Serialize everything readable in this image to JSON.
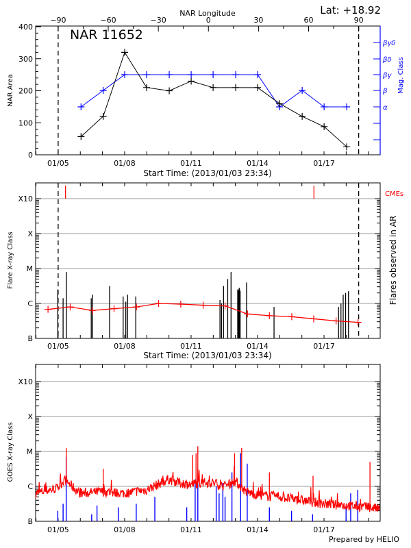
{
  "chart_data": [
    {
      "type": "line",
      "title": "NAR 11652",
      "annotation_lat": "Lat: +18.92",
      "top_axis_label": "NAR Longitude",
      "top_ticks": [
        "-90",
        "-60",
        "-30",
        "0",
        "30",
        "60",
        "90"
      ],
      "top_tick_values": [
        -90,
        -60,
        -30,
        0,
        30,
        60,
        90
      ],
      "xlabel": "Start Time: (2013/01/03 23:34)",
      "x_tick_labels": [
        "01/05",
        "01/08",
        "01/11",
        "01/14",
        "01/17"
      ],
      "x_tick_days": [
        1.0167,
        4.0167,
        7.0167,
        10.0167,
        13.0167
      ],
      "x_range_days": [
        0,
        15.55
      ],
      "ylabel": "NAR Area",
      "ylim": [
        0,
        400
      ],
      "y_ticks": [
        "0",
        "100",
        "200",
        "300",
        "400"
      ],
      "limb_lines_days": [
        1.0167,
        14.58
      ],
      "series": [
        {
          "name": "NAR Area",
          "color": "#000000",
          "x_days": [
            2.05,
            3.05,
            4.02,
            5.01,
            6.03,
            7.02,
            8.01,
            9.03,
            10.02,
            11.01,
            12.03,
            13.02,
            14.04
          ],
          "values": [
            57,
            120,
            320,
            210,
            200,
            230,
            210,
            210,
            210,
            160,
            120,
            88,
            25
          ]
        },
        {
          "name": "Mag. Class",
          "color": "#0000ff",
          "x_days": [
            2.05,
            3.05,
            4.02,
            5.01,
            6.03,
            7.02,
            8.01,
            9.03,
            10.02,
            11.01,
            12.03,
            13.02,
            14.04
          ],
          "values": [
            "α",
            "β",
            "βγ",
            "βγ",
            "βγ",
            "βγ",
            "βγ",
            "βγ",
            "βγ",
            "α",
            "β",
            "α",
            "α"
          ]
        }
      ],
      "right_axis": {
        "label": "Mag. Class",
        "ticks": [
          "α",
          "β",
          "βγ",
          "βδ",
          "βγδ"
        ],
        "color": "#0000ff"
      }
    },
    {
      "type": "bar",
      "title": "",
      "xlabel": "Start Time: (2013/01/03 23:34)",
      "x_tick_labels": [
        "01/05",
        "01/08",
        "01/11",
        "01/14",
        "01/17"
      ],
      "ylabel": "Flare X-ray Class",
      "right_label": "Flares observed in AR",
      "y_ticks": [
        "B",
        "C",
        "M",
        "X",
        "X10"
      ],
      "ylim_log_flux": [
        -7,
        -2.55
      ],
      "cme_label": "CMEs",
      "cme_color": "#ff0000",
      "cme_days": [
        1.35,
        12.56
      ],
      "limb_lines_days": [
        1.0167,
        14.58
      ],
      "flares": {
        "color": "#000000",
        "x_days": [
          1.0,
          1.24,
          1.39,
          2.51,
          2.57,
          3.34,
          3.95,
          4.07,
          4.15,
          4.52,
          8.32,
          8.39,
          8.48,
          8.67,
          8.82,
          9.12,
          9.15,
          9.17,
          9.19,
          9.21,
          9.23,
          9.52,
          10.76,
          13.67,
          13.78,
          13.88,
          13.99,
          14.12
        ],
        "class_flux_log": [
          -5.6,
          -5.85,
          -5.1,
          -5.85,
          -5.75,
          -5.5,
          -5.8,
          -5.95,
          -5.75,
          -5.8,
          -5.9,
          -6.0,
          -5.5,
          -5.3,
          -5.1,
          -5.6,
          -5.65,
          -5.6,
          -5.55,
          -5.6,
          -5.65,
          -5.4,
          -6.1,
          -6.1,
          -6.0,
          -5.75,
          -5.7,
          -5.65
        ]
      },
      "background_series": {
        "name": "Background",
        "color": "#ff0000",
        "x_days": [
          0.56,
          1.56,
          2.56,
          3.54,
          4.55,
          5.55,
          6.55,
          7.56,
          8.55,
          9.56,
          10.55,
          11.56,
          12.55,
          13.56,
          14.55
        ],
        "class_flux_log": [
          -6.17,
          -6.1,
          -6.2,
          -6.15,
          -6.1,
          -6.0,
          -6.02,
          -6.05,
          -6.07,
          -6.3,
          -6.35,
          -6.38,
          -6.44,
          -6.5,
          -6.54
        ]
      }
    },
    {
      "type": "line",
      "title": "",
      "ylabel": "GOES X-ray Class",
      "x_tick_labels": [
        "01/05",
        "01/08",
        "01/11",
        "01/14",
        "01/17"
      ],
      "y_ticks": [
        "B",
        "C",
        "M",
        "X",
        "X10"
      ],
      "series": [
        {
          "name": "GOES long channel",
          "color": "#ff0000"
        },
        {
          "name": "GOES short channel",
          "color": "#0000ff"
        }
      ],
      "long_channel_envelope_class_flux_log": {
        "x_days": [
          0,
          1,
          1.3,
          2,
          3,
          4,
          5,
          5.5,
          6,
          6.5,
          7,
          7.5,
          8,
          8.5,
          9,
          9.5,
          10,
          11,
          12,
          13,
          14,
          15,
          15.55
        ],
        "values": [
          -6.2,
          -6.05,
          -5.8,
          -6.2,
          -6.15,
          -6.2,
          -6.1,
          -5.95,
          -5.8,
          -5.9,
          -5.95,
          -5.9,
          -5.9,
          -6.0,
          -5.85,
          -6.15,
          -6.25,
          -6.3,
          -6.4,
          -6.5,
          -6.55,
          -6.6,
          -6.65
        ]
      },
      "long_channel_spikes": {
        "x_days": [
          1.38,
          3.05,
          7.09,
          7.24,
          7.32,
          8.98,
          9.3,
          10.55,
          12.52,
          15.09
        ],
        "values": [
          -4.9,
          -5.5,
          -5.1,
          -5.05,
          -4.85,
          -5.05,
          -4.9,
          -5.6,
          -5.7,
          -5.3
        ]
      },
      "short_channel_spikes": {
        "x_days": [
          1.0,
          1.24,
          1.38,
          2.53,
          2.77,
          3.73,
          4.54,
          5.38,
          6.82,
          7.2,
          7.32,
          8.15,
          8.28,
          8.45,
          8.55,
          8.86,
          9.25,
          9.55,
          10.55,
          11.55,
          12.5,
          14.01,
          14.22,
          14.54
        ],
        "values": [
          -6.7,
          -6.5,
          -5.15,
          -6.8,
          -6.55,
          -6.6,
          -6.5,
          -6.3,
          -6.6,
          -5.8,
          -5.75,
          -6.0,
          -6.2,
          -5.9,
          -6.3,
          -5.6,
          -5.05,
          -5.35,
          -6.6,
          -6.7,
          -6.8,
          -6.6,
          -6.2,
          -6.1
        ]
      }
    }
  ],
  "footer": {
    "prepared_by": "Prepared by HELIO"
  }
}
